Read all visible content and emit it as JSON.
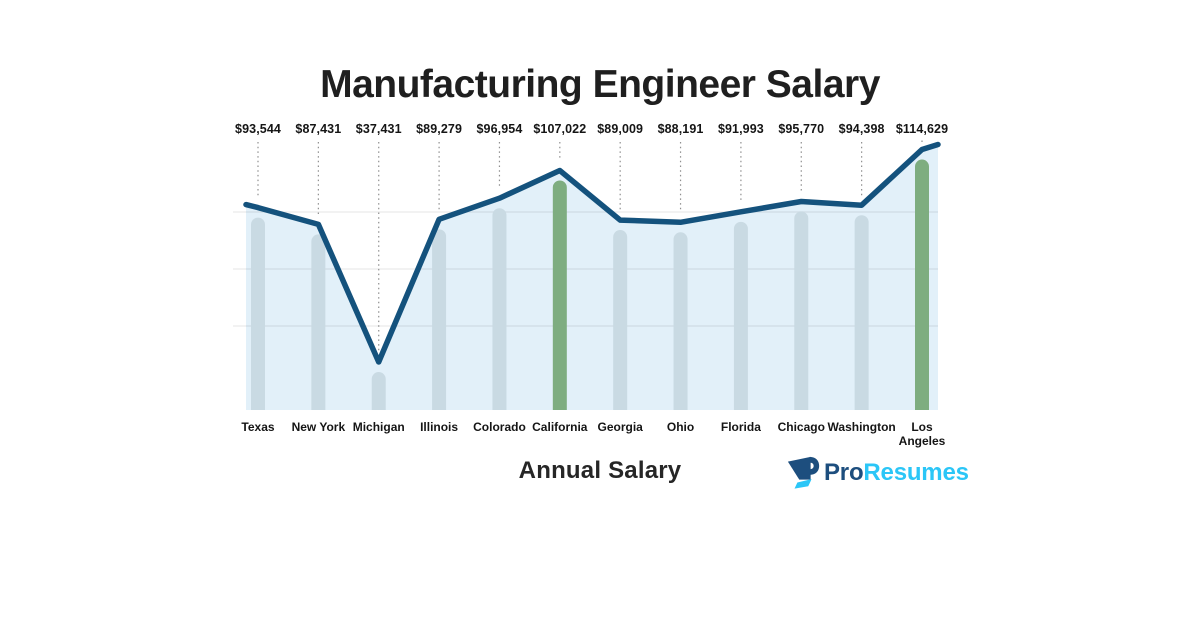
{
  "page": {
    "title": "Manufacturing Engineer Salary",
    "footer_axis_label": "Annual Salary"
  },
  "brand": {
    "name": "ProResumes",
    "part1": "Pro",
    "part2": "Resumes",
    "logo_icon": "pennant-r-monogram-icon"
  },
  "colors": {
    "line": "#14527d",
    "area_fill": "#e2f0f9",
    "bar": "#c9dae3",
    "bar_highlight": "#7ead80",
    "gridline": "#e9e9e9",
    "leader_dots": "#8f8f8f",
    "text": "#1b1b1b",
    "logo_navy": "#1d4e7e",
    "logo_cyan": "#2bc6f7"
  },
  "chart_data": {
    "type": "line",
    "style": "line with area fill and rounded background bars",
    "title": "Manufacturing Engineer Salary",
    "xlabel": "Annual Salary",
    "ylabel": "",
    "categories": [
      "Texas",
      "New York",
      "Michigan",
      "Illinois",
      "Colorado",
      "California",
      "Georgia",
      "Ohio",
      "Florida",
      "Chicago",
      "Washington",
      "Los Angeles"
    ],
    "categories_display": [
      "Texas",
      "New York",
      "Michigan",
      "Illinois",
      "Colorado",
      "California",
      "Georgia",
      "Ohio",
      "Florida",
      "Chicago",
      "Washington",
      "Los\nAngeles"
    ],
    "values": [
      93544,
      87431,
      37431,
      89279,
      96954,
      107022,
      89009,
      88191,
      91993,
      95770,
      94398,
      114629
    ],
    "value_labels": [
      "$93,544",
      "$87,431",
      "$37,431",
      "$89,279",
      "$96,954",
      "$107,022",
      "$89,009",
      "$88,191",
      "$91,993",
      "$95,770",
      "$94,398",
      "$114,629"
    ],
    "series": [
      {
        "name": "Annual Salary",
        "values": [
          93544,
          87431,
          37431,
          89279,
          96954,
          107022,
          89009,
          88191,
          91993,
          95770,
          94398,
          114629
        ]
      }
    ],
    "highlight_indices": [
      5,
      11
    ],
    "highlight_categories": [
      "California",
      "Los Angeles"
    ],
    "ylim": [
      20000,
      125000
    ],
    "grid": true,
    "gridlines": "3 horizontal light gray lines",
    "legend": false,
    "annotations": "dotted vertical leader lines connect each value label to its data point"
  }
}
